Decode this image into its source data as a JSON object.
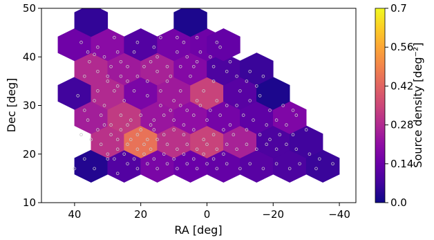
{
  "chart_data": {
    "type": "heatmap",
    "subtype": "hexbin-with-scatter",
    "xlabel": "RA [deg]",
    "ylabel": "Dec [deg]",
    "xlim": [
      50,
      -45
    ],
    "ylim": [
      10,
      50
    ],
    "x_ticks": [
      40,
      20,
      0,
      -20,
      -40
    ],
    "x_tick_labels": [
      "40",
      "20",
      "0",
      "−20",
      "−40"
    ],
    "y_ticks": [
      10,
      20,
      30,
      40,
      50
    ],
    "y_tick_labels": [
      "10",
      "20",
      "30",
      "40",
      "50"
    ],
    "grid": false,
    "colormap": "plasma",
    "colorbar": {
      "label": "Source density [deg⁻²]",
      "range": [
        0.0,
        0.7
      ],
      "ticks": [
        0.0,
        0.14,
        0.28,
        0.42,
        0.56,
        0.7
      ],
      "tick_labels": [
        "0.0",
        "0.14",
        "0.28",
        "0.42",
        "0.56",
        "0.7"
      ]
    },
    "hexbins": [
      {
        "ra": 35,
        "dec": 17.5,
        "value": 0.03
      },
      {
        "ra": 25,
        "dec": 17.5,
        "value": 0.1
      },
      {
        "ra": 15,
        "dec": 17.5,
        "value": 0.17
      },
      {
        "ra": 5,
        "dec": 17.5,
        "value": 0.14
      },
      {
        "ra": -5,
        "dec": 17.5,
        "value": 0.13
      },
      {
        "ra": -15,
        "dec": 17.5,
        "value": 0.11
      },
      {
        "ra": -25,
        "dec": 17.5,
        "value": 0.09
      },
      {
        "ra": -35,
        "dec": 17.5,
        "value": 0.06
      },
      {
        "ra": 30,
        "dec": 22.5,
        "value": 0.3
      },
      {
        "ra": 20,
        "dec": 22.5,
        "value": 0.45
      },
      {
        "ra": 10,
        "dec": 22.5,
        "value": 0.3
      },
      {
        "ra": 0,
        "dec": 22.5,
        "value": 0.34
      },
      {
        "ra": -10,
        "dec": 22.5,
        "value": 0.26
      },
      {
        "ra": -20,
        "dec": 22.5,
        "value": 0.09
      },
      {
        "ra": -30,
        "dec": 22.5,
        "value": 0.07
      },
      {
        "ra": 35,
        "dec": 27.5,
        "value": 0.25
      },
      {
        "ra": 25,
        "dec": 27.5,
        "value": 0.32
      },
      {
        "ra": 15,
        "dec": 27.5,
        "value": 0.23
      },
      {
        "ra": 5,
        "dec": 27.5,
        "value": 0.21
      },
      {
        "ra": -5,
        "dec": 27.5,
        "value": 0.16
      },
      {
        "ra": -15,
        "dec": 27.5,
        "value": 0.12
      },
      {
        "ra": -25,
        "dec": 27.5,
        "value": 0.18
      },
      {
        "ra": 40,
        "dec": 32.5,
        "value": 0.07
      },
      {
        "ra": 30,
        "dec": 32.5,
        "value": 0.28
      },
      {
        "ra": 20,
        "dec": 32.5,
        "value": 0.17
      },
      {
        "ra": 10,
        "dec": 32.5,
        "value": 0.24
      },
      {
        "ra": 0,
        "dec": 32.5,
        "value": 0.34
      },
      {
        "ra": -10,
        "dec": 32.5,
        "value": 0.11
      },
      {
        "ra": -20,
        "dec": 32.5,
        "value": 0.02
      },
      {
        "ra": 35,
        "dec": 37.5,
        "value": 0.28
      },
      {
        "ra": 25,
        "dec": 37.5,
        "value": 0.24
      },
      {
        "ra": 15,
        "dec": 37.5,
        "value": 0.26
      },
      {
        "ra": 5,
        "dec": 37.5,
        "value": 0.19
      },
      {
        "ra": -5,
        "dec": 37.5,
        "value": 0.09
      },
      {
        "ra": -15,
        "dec": 37.5,
        "value": 0.06
      },
      {
        "ra": 40,
        "dec": 42.5,
        "value": 0.15
      },
      {
        "ra": 30,
        "dec": 42.5,
        "value": 0.2
      },
      {
        "ra": 20,
        "dec": 42.5,
        "value": 0.1
      },
      {
        "ra": 10,
        "dec": 42.5,
        "value": 0.16
      },
      {
        "ra": 0,
        "dec": 42.5,
        "value": 0.15
      },
      {
        "ra": -5,
        "dec": 42.5,
        "value": 0.13
      },
      {
        "ra": 35,
        "dec": 47.5,
        "value": 0.05
      },
      {
        "ra": 5,
        "dec": 47.5,
        "value": 0.02
      }
    ],
    "sources": [
      [
        36,
        41
      ],
      [
        34,
        40.5
      ],
      [
        35.5,
        39
      ],
      [
        31,
        40
      ],
      [
        29,
        38
      ],
      [
        33,
        37
      ],
      [
        37,
        36
      ],
      [
        30,
        35
      ],
      [
        26,
        36
      ],
      [
        24,
        38
      ],
      [
        27,
        41
      ],
      [
        22,
        41
      ],
      [
        17,
        39
      ],
      [
        15,
        40
      ],
      [
        12,
        38
      ],
      [
        9,
        41
      ],
      [
        6,
        40
      ],
      [
        4,
        38
      ],
      [
        2,
        41
      ],
      [
        -1,
        40
      ],
      [
        7,
        43
      ],
      [
        3,
        44
      ],
      [
        -3,
        43
      ],
      [
        14,
        44
      ],
      [
        19,
        38
      ],
      [
        12,
        35
      ],
      [
        8,
        33
      ],
      [
        5,
        36
      ],
      [
        1,
        33
      ],
      [
        -2,
        35
      ],
      [
        -6,
        37
      ],
      [
        -9,
        36
      ],
      [
        -12,
        35
      ],
      [
        -15,
        34
      ],
      [
        -17,
        36
      ],
      [
        -13,
        37
      ],
      [
        -7,
        39
      ],
      [
        -10,
        33
      ],
      [
        -16,
        32
      ],
      [
        -3,
        31
      ],
      [
        2,
        30
      ],
      [
        6,
        29
      ],
      [
        10,
        31
      ],
      [
        14,
        30
      ],
      [
        18,
        32
      ],
      [
        22,
        33
      ],
      [
        25,
        31
      ],
      [
        28,
        33
      ],
      [
        31,
        30
      ],
      [
        34,
        31
      ],
      [
        37,
        29
      ],
      [
        39,
        32
      ],
      [
        36,
        27
      ],
      [
        32,
        28
      ],
      [
        29,
        26
      ],
      [
        26,
        28
      ],
      [
        23,
        27
      ],
      [
        20,
        28
      ],
      [
        17,
        26
      ],
      [
        13,
        28
      ],
      [
        10,
        27
      ],
      [
        7,
        26
      ],
      [
        4,
        28
      ],
      [
        0,
        27
      ],
      [
        -4,
        28
      ],
      [
        -7,
        26
      ],
      [
        -11,
        28
      ],
      [
        -14,
        27
      ],
      [
        -18,
        26
      ],
      [
        -21,
        27
      ],
      [
        -24,
        26
      ],
      [
        -27,
        28
      ],
      [
        -30,
        25
      ],
      [
        -26,
        24
      ],
      [
        -22,
        24
      ],
      [
        -19,
        23
      ],
      [
        -16,
        24
      ],
      [
        -12,
        25
      ],
      [
        -8,
        24
      ],
      [
        -5,
        25
      ],
      [
        -2,
        24
      ],
      [
        1,
        23
      ],
      [
        4,
        25
      ],
      [
        7,
        24
      ],
      [
        10,
        25
      ],
      [
        13,
        24
      ],
      [
        16,
        25
      ],
      [
        18,
        23
      ],
      [
        21,
        24
      ],
      [
        23,
        23
      ],
      [
        26,
        25
      ],
      [
        29,
        24
      ],
      [
        32,
        22
      ],
      [
        30,
        20
      ],
      [
        27,
        21
      ],
      [
        24,
        22
      ],
      [
        21,
        21
      ],
      [
        19,
        22
      ],
      [
        17,
        21
      ],
      [
        15,
        23
      ],
      [
        12,
        22
      ],
      [
        9,
        21
      ],
      [
        6,
        22
      ],
      [
        3,
        21
      ],
      [
        0,
        22
      ],
      [
        -3,
        21
      ],
      [
        -6,
        22
      ],
      [
        -9,
        21
      ],
      [
        -12,
        22
      ],
      [
        -15,
        21
      ],
      [
        -18,
        22
      ],
      [
        -21,
        21
      ],
      [
        -24,
        22
      ],
      [
        -27,
        21
      ],
      [
        -31,
        20
      ],
      [
        -34,
        19
      ],
      [
        -38,
        18
      ],
      [
        -33,
        17
      ],
      [
        -28,
        18
      ],
      [
        -25,
        17
      ],
      [
        -21,
        18
      ],
      [
        -17,
        17
      ],
      [
        -13,
        18
      ],
      [
        -10,
        17
      ],
      [
        -6,
        18
      ],
      [
        -3,
        17
      ],
      [
        0,
        18
      ],
      [
        3,
        17
      ],
      [
        6,
        18
      ],
      [
        9,
        17
      ],
      [
        12,
        18
      ],
      [
        15,
        17
      ],
      [
        18,
        18
      ],
      [
        21,
        17
      ],
      [
        24,
        18
      ],
      [
        27,
        16
      ],
      [
        30,
        19
      ],
      [
        34,
        17
      ],
      [
        37,
        19
      ],
      [
        40,
        17
      ],
      [
        22,
        19
      ],
      [
        19,
        20
      ],
      [
        16,
        19
      ],
      [
        13,
        20
      ],
      [
        10,
        19
      ],
      [
        7,
        20
      ],
      [
        4,
        19
      ],
      [
        1,
        20
      ],
      [
        -2,
        19
      ],
      [
        -5,
        20
      ],
      [
        25,
        20
      ],
      [
        28,
        19
      ],
      [
        33,
        25
      ],
      [
        38,
        24
      ],
      [
        35,
        23
      ],
      [
        31,
        26
      ],
      [
        27,
        23
      ],
      [
        24,
        26
      ],
      [
        20,
        25
      ],
      [
        16,
        27
      ],
      [
        11,
        29
      ],
      [
        8,
        30
      ],
      [
        3,
        31
      ],
      [
        -1,
        29
      ],
      [
        -6,
        30
      ],
      [
        -9,
        30
      ],
      [
        -13,
        31
      ],
      [
        -19,
        29
      ],
      [
        -23,
        30
      ],
      [
        -26,
        29
      ],
      [
        33,
        33
      ],
      [
        30,
        36
      ],
      [
        27,
        34
      ],
      [
        24,
        35
      ],
      [
        21,
        36
      ],
      [
        18,
        35
      ],
      [
        15,
        37
      ],
      [
        11,
        36
      ],
      [
        8,
        38
      ],
      [
        3,
        39
      ],
      [
        -2,
        38
      ],
      [
        -4,
        42
      ],
      [
        9,
        44
      ],
      [
        16,
        42
      ],
      [
        21,
        43
      ],
      [
        28,
        44
      ],
      [
        33,
        42
      ],
      [
        38,
        43
      ],
      [
        26,
        39
      ],
      [
        14,
        33
      ]
    ]
  }
}
